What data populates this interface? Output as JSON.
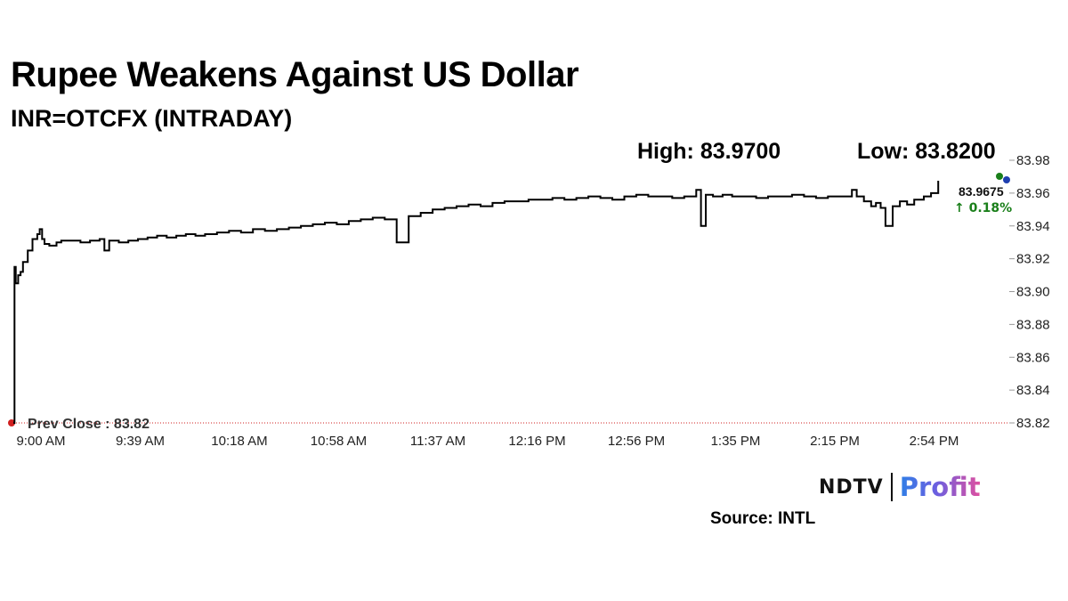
{
  "header": {
    "title": "Rupee Weakens Against US Dollar",
    "subtitle": "INR=OTCFX (INTRADAY)"
  },
  "stats": {
    "high_label": "High:",
    "high_value": "83.9700",
    "low_label": "Low:",
    "low_value": "83.8200"
  },
  "last": {
    "value": "83.9675",
    "change": "↑ 0.18%",
    "change_color": "#1a7f1a"
  },
  "prev_close": {
    "label": "Prev Close : 83.82",
    "value": 83.82,
    "color": "#d01f1f"
  },
  "footer": {
    "logo_ndtv": "NDTV",
    "logo_profit": "Profit",
    "source": "Source: INTL"
  },
  "chart_data": {
    "type": "line",
    "title": "Rupee Weakens Against US Dollar",
    "subtitle": "INR=OTCFX (INTRADAY)",
    "xlabel": "",
    "ylabel": "",
    "x_ticks": [
      "9:00 AM",
      "9:39 AM",
      "10:18 AM",
      "10:58 AM",
      "11:37 AM",
      "12:16 PM",
      "12:56 PM",
      "1:35 PM",
      "2:15 PM",
      "2:54 PM"
    ],
    "y_ticks": [
      "83.98",
      "83.96",
      "83.94",
      "83.92",
      "83.90",
      "83.88",
      "83.86",
      "83.84",
      "83.82"
    ],
    "ylim": [
      83.82,
      83.98
    ],
    "xlim_minutes": [
      0,
      393
    ],
    "grid": false,
    "line_color": "#000000",
    "series": [
      {
        "x_minutes": [
          0,
          0.5,
          1,
          2,
          3,
          4,
          6,
          8,
          10,
          11,
          12,
          13,
          15,
          18,
          20,
          24,
          28,
          32,
          36,
          38,
          40,
          44,
          48,
          52,
          56,
          60,
          64,
          68,
          72,
          76,
          80,
          85,
          90,
          95,
          100,
          105,
          110,
          115,
          120,
          125,
          130,
          135,
          140,
          145,
          150,
          155,
          160,
          165,
          170,
          175,
          180,
          185,
          190,
          195,
          200,
          205,
          210,
          215,
          220,
          225,
          230,
          235,
          240,
          245,
          250,
          255,
          260,
          265,
          270,
          275,
          280,
          285,
          287,
          289,
          292,
          296,
          300,
          305,
          310,
          315,
          320,
          325,
          330,
          335,
          340,
          345,
          350,
          352,
          355,
          358,
          360,
          362,
          364,
          367,
          370,
          373,
          376,
          380,
          383,
          386
        ],
        "values": [
          83.82,
          83.915,
          83.905,
          83.91,
          83.912,
          83.918,
          83.925,
          83.932,
          83.935,
          83.938,
          83.932,
          83.929,
          83.928,
          83.93,
          83.931,
          83.931,
          83.93,
          83.931,
          83.932,
          83.925,
          83.931,
          83.93,
          83.931,
          83.932,
          83.933,
          83.934,
          83.933,
          83.934,
          83.935,
          83.934,
          83.935,
          83.936,
          83.937,
          83.936,
          83.938,
          83.937,
          83.938,
          83.939,
          83.94,
          83.941,
          83.942,
          83.941,
          83.943,
          83.944,
          83.945,
          83.944,
          83.93,
          83.946,
          83.948,
          83.95,
          83.951,
          83.952,
          83.953,
          83.952,
          83.954,
          83.955,
          83.955,
          83.956,
          83.956,
          83.957,
          83.956,
          83.957,
          83.958,
          83.957,
          83.956,
          83.958,
          83.959,
          83.958,
          83.958,
          83.957,
          83.958,
          83.962,
          83.94,
          83.959,
          83.958,
          83.959,
          83.958,
          83.958,
          83.957,
          83.958,
          83.958,
          83.959,
          83.958,
          83.957,
          83.958,
          83.958,
          83.962,
          83.958,
          83.955,
          83.952,
          83.954,
          83.951,
          83.94,
          83.952,
          83.955,
          83.953,
          83.956,
          83.958,
          83.96,
          83.9675
        ]
      }
    ]
  }
}
